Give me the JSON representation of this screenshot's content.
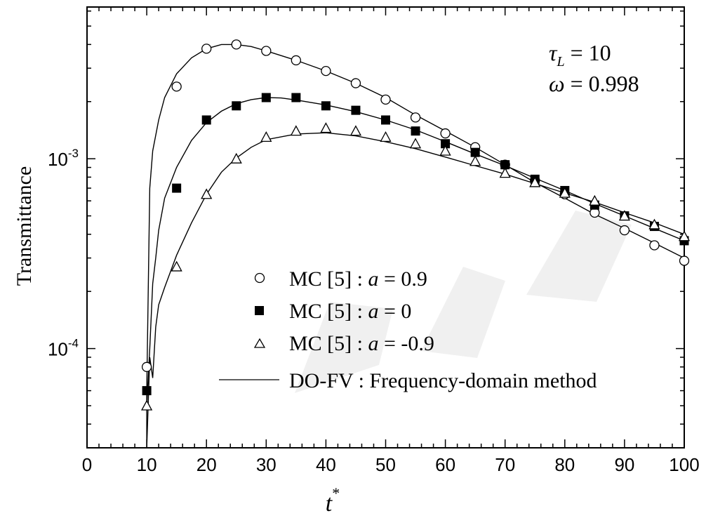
{
  "chart_data": {
    "type": "scatter",
    "title": "",
    "xlabel": "t",
    "xlabel_superscript": "*",
    "ylabel": "Transmittance",
    "xlim": [
      0,
      100
    ],
    "ylim": [
      3e-05,
      0.0063
    ],
    "yscale": "log",
    "grid": false,
    "x_ticks": [
      "0",
      "10",
      "20",
      "30",
      "40",
      "50",
      "60",
      "70",
      "80",
      "90",
      "100"
    ],
    "y_ticks": [
      {
        "value": 0.001,
        "base": "10",
        "exp": "-3"
      },
      {
        "value": 0.0001,
        "base": "10",
        "exp": "-4"
      }
    ],
    "annotation": {
      "tau_symbol": "τ",
      "tau_subscript": "L",
      "tau_value": " = 10",
      "omega_symbol": "ω",
      "omega_value": " = 0.998"
    },
    "legend_position": "bottom-center",
    "series": [
      {
        "name": "MC [5] : a = 0.9",
        "legend_prefix": "MC [5] : ",
        "legend_var": "a",
        "legend_value": " = 0.9",
        "marker": "circle-open",
        "x": [
          10,
          15,
          20,
          25,
          30,
          35,
          40,
          45,
          50,
          55,
          60,
          65,
          70,
          75,
          80,
          85,
          90,
          95,
          100
        ],
        "y": [
          8e-05,
          0.0024,
          0.0038,
          0.004,
          0.0037,
          0.0033,
          0.0029,
          0.0025,
          0.00205,
          0.00165,
          0.00136,
          0.00115,
          0.00093,
          0.00077,
          0.00065,
          0.00052,
          0.00042,
          0.00035,
          0.00029
        ]
      },
      {
        "name": "MC [5] : a = 0",
        "legend_prefix": "MC [5] : ",
        "legend_var": "a",
        "legend_value": " = 0",
        "marker": "square-filled",
        "x": [
          10,
          15,
          20,
          25,
          30,
          35,
          40,
          45,
          50,
          55,
          60,
          65,
          70,
          75,
          80,
          85,
          90,
          95,
          100
        ],
        "y": [
          6e-05,
          0.0007,
          0.0016,
          0.0019,
          0.0021,
          0.0021,
          0.0019,
          0.0018,
          0.0016,
          0.0014,
          0.0012,
          0.00108,
          0.00093,
          0.00078,
          0.00068,
          0.00057,
          0.0005,
          0.00044,
          0.00037
        ]
      },
      {
        "name": "MC [5] : a = -0.9",
        "legend_prefix": "MC [5] : ",
        "legend_var": "a",
        "legend_value": " = -0.9",
        "marker": "triangle-open",
        "x": [
          10,
          15,
          20,
          25,
          30,
          35,
          40,
          45,
          50,
          55,
          60,
          65,
          70,
          75,
          80,
          85,
          90,
          95,
          100
        ],
        "y": [
          5e-05,
          0.00027,
          0.00065,
          0.001,
          0.0013,
          0.0014,
          0.00145,
          0.0014,
          0.0013,
          0.0012,
          0.0011,
          0.00097,
          0.00084,
          0.00075,
          0.00066,
          0.0006,
          0.0005,
          0.00045,
          0.00039
        ]
      },
      {
        "name": "DO-FV : Frequency-domain method",
        "legend_text": "DO-FV : Frequency-domain method",
        "marker": "line",
        "curves": [
          {
            "x": [
              10,
              10.5,
              11,
              12,
              13,
              15,
              17.5,
              20,
              22.5,
              25,
              27.5,
              30,
              35,
              40,
              45,
              50,
              55,
              60,
              65,
              70,
              75,
              80,
              85,
              90,
              95,
              100
            ],
            "y": [
              6e-05,
              0.0007,
              0.0011,
              0.0016,
              0.0021,
              0.0028,
              0.0034,
              0.0038,
              0.004,
              0.004,
              0.0039,
              0.0037,
              0.0033,
              0.0029,
              0.0025,
              0.0021,
              0.0017,
              0.0014,
              0.00115,
              0.00093,
              0.00075,
              0.00062,
              0.00051,
              0.00043,
              0.00036,
              0.0003
            ]
          },
          {
            "x": [
              10,
              10.5,
              11,
              11.5,
              12,
              13,
              15,
              17.5,
              20,
              22.5,
              25,
              27.5,
              30,
              32.5,
              35,
              40,
              45,
              50,
              55,
              60,
              65,
              70,
              75,
              80,
              85,
              90,
              95,
              100
            ],
            "y": [
              5e-05,
              0.0001,
              0.00022,
              0.0003,
              0.00042,
              0.00062,
              0.0009,
              0.00125,
              0.00155,
              0.00178,
              0.00195,
              0.00205,
              0.0021,
              0.00209,
              0.00204,
              0.00192,
              0.00177,
              0.0016,
              0.00142,
              0.00123,
              0.00106,
              0.00092,
              0.00079,
              0.00068,
              0.00058,
              0.0005,
              0.00043,
              0.00037
            ]
          },
          {
            "x": [
              10,
              10.5,
              11,
              11.5,
              12,
              13,
              15,
              17.5,
              20,
              22.5,
              25,
              27.5,
              30,
              35,
              40,
              45,
              50,
              55,
              60,
              65,
              70,
              75,
              80,
              85,
              90,
              95,
              100
            ],
            "y": [
              3e-05,
              9e-05,
              7e-05,
              0.00013,
              0.00017,
              0.00021,
              0.00031,
              0.00046,
              0.00065,
              0.00085,
              0.00101,
              0.00115,
              0.00126,
              0.00135,
              0.00137,
              0.00132,
              0.00123,
              0.00113,
              0.00102,
              0.00092,
              0.00083,
              0.00074,
              0.00066,
              0.00059,
              0.00052,
              0.00046,
              0.0004
            ]
          }
        ]
      }
    ]
  }
}
